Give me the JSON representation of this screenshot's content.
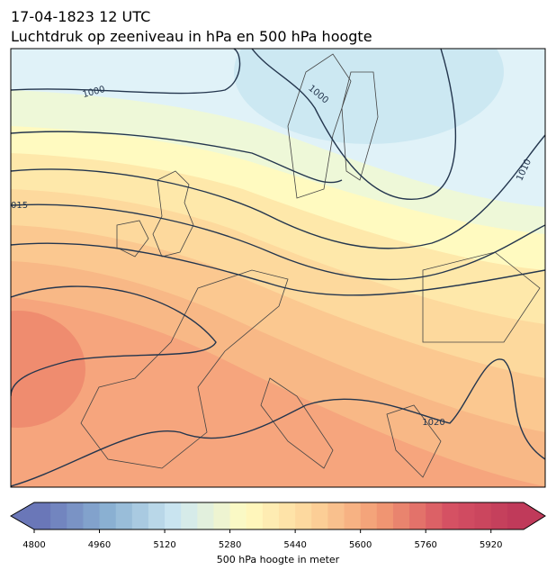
{
  "header": {
    "date": "17-04-1823 12 UTC",
    "title": "Luchtdruk op zeeniveau in hPa en 500 hPa hoogte"
  },
  "contour_labels": [
    "1000",
    "1000",
    "1010",
    "015",
    "1020"
  ],
  "colorbar": {
    "label": "500 hPa hoogte in meter",
    "lim": [
      4800,
      6000
    ],
    "ticks": [
      4800,
      4960,
      5120,
      5280,
      5440,
      5600,
      5760,
      5920
    ]
  }
}
